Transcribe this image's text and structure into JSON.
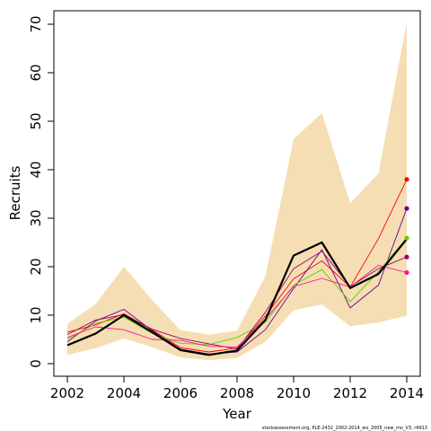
{
  "chart_data": {
    "type": "line",
    "xlabel": "Year",
    "ylabel": "Recruits",
    "xlim": [
      2002,
      2014
    ],
    "ylim": [
      0,
      70
    ],
    "xticks": [
      2002,
      2004,
      2006,
      2008,
      2010,
      2012,
      2014
    ],
    "yticks": [
      0,
      10,
      20,
      30,
      40,
      50,
      60,
      70
    ],
    "caption": "stockassessment.org, PLE-2432_2002-2014_wo_2005_new_mo_V3, r4913",
    "x": [
      2002,
      2003,
      2004,
      2005,
      2006,
      2007,
      2008,
      2009,
      2010,
      2011,
      2012,
      2013,
      2014
    ],
    "band": {
      "color": "#F5DEB3",
      "lower": [
        1.8,
        3.2,
        5.2,
        3.4,
        1.3,
        0.7,
        1.2,
        4.5,
        11.0,
        12.2,
        7.7,
        8.5,
        9.9
      ],
      "upper": [
        8.2,
        12.3,
        20.0,
        13.1,
        6.9,
        6.0,
        6.8,
        18.0,
        46.3,
        51.7,
        33.1,
        39.2,
        70.5
      ]
    },
    "series": [
      {
        "color": "#000000",
        "width": 2.2,
        "values": [
          3.8,
          6.2,
          10.0,
          6.5,
          2.8,
          1.8,
          2.7,
          9.0,
          22.3,
          25.0,
          15.6,
          18.5,
          25.7
        ]
      },
      {
        "color": "#FF0000",
        "width": 0.9,
        "values": [
          6.5,
          8.0,
          10.3,
          7.0,
          3.3,
          2.4,
          3.2,
          9.8,
          17.5,
          21.2,
          15.8,
          25.8,
          38.0
        ],
        "endpoint": true
      },
      {
        "color": "#660099",
        "width": 0.9,
        "values": [
          4.5,
          8.8,
          11.2,
          6.8,
          3.0,
          2.0,
          2.4,
          7.0,
          15.5,
          23.5,
          11.5,
          16.2,
          32.0
        ],
        "endpoint": true
      },
      {
        "color": "#66CC00",
        "width": 0.9,
        "values": [
          5.0,
          8.3,
          9.6,
          6.2,
          4.2,
          3.9,
          5.4,
          8.5,
          16.2,
          19.4,
          12.8,
          19.0,
          25.9
        ],
        "endpoint": true
      },
      {
        "color": "#990066",
        "width": 0.9,
        "values": [
          6.0,
          9.0,
          10.1,
          7.1,
          5.2,
          4.1,
          3.0,
          10.6,
          19.6,
          23.2,
          15.9,
          19.6,
          22.0
        ],
        "endpoint": true
      },
      {
        "color": "#FF1493",
        "width": 0.9,
        "values": [
          5.4,
          7.6,
          7.0,
          5.0,
          4.8,
          3.6,
          3.4,
          9.2,
          15.9,
          17.6,
          15.8,
          20.3,
          18.8
        ],
        "endpoint": true
      }
    ]
  }
}
